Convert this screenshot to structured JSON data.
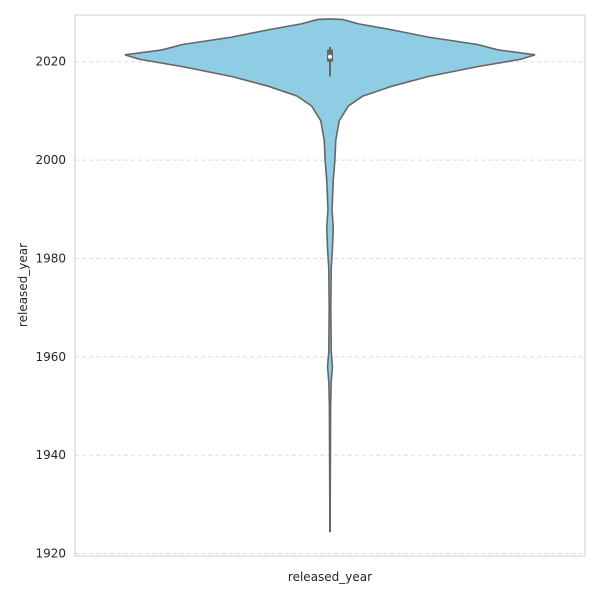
{
  "chart_data": {
    "type": "violin",
    "title": "",
    "xlabel": "released_year",
    "ylabel": "released_year",
    "ylim": [
      1919.5,
      2029.5
    ],
    "yticks": [
      1920,
      1940,
      1960,
      1980,
      2000,
      2020
    ],
    "ytick_labels": [
      "1920",
      "1940",
      "1960",
      "1980",
      "2000",
      "2020"
    ],
    "grid": "horizontal-dashed",
    "colors": {
      "fill": "#8ecde3",
      "stroke": "#666666",
      "grid": "#dddddd",
      "frame": "#cccccc",
      "box": "#666666"
    },
    "summary": {
      "min": 1924.5,
      "q1": 2020,
      "median": 2021,
      "q3": 2022.5,
      "max": 2028.5,
      "whisker_low": 2017,
      "whisker_high": 2023
    },
    "density_profile": [
      {
        "year": 1924.5,
        "half_width": 0.001
      },
      {
        "year": 1930,
        "half_width": 0.001
      },
      {
        "year": 1940,
        "half_width": 0.002
      },
      {
        "year": 1950,
        "half_width": 0.003
      },
      {
        "year": 1955,
        "half_width": 0.006
      },
      {
        "year": 1958,
        "half_width": 0.012
      },
      {
        "year": 1961,
        "half_width": 0.006
      },
      {
        "year": 1970,
        "half_width": 0.004
      },
      {
        "year": 1978,
        "half_width": 0.006
      },
      {
        "year": 1982,
        "half_width": 0.012
      },
      {
        "year": 1986,
        "half_width": 0.016
      },
      {
        "year": 1990,
        "half_width": 0.01
      },
      {
        "year": 1996,
        "half_width": 0.016
      },
      {
        "year": 2000,
        "half_width": 0.024
      },
      {
        "year": 2004,
        "half_width": 0.028
      },
      {
        "year": 2008,
        "half_width": 0.045
      },
      {
        "year": 2011,
        "half_width": 0.09
      },
      {
        "year": 2013,
        "half_width": 0.16
      },
      {
        "year": 2015,
        "half_width": 0.3
      },
      {
        "year": 2017,
        "half_width": 0.48
      },
      {
        "year": 2019,
        "half_width": 0.72
      },
      {
        "year": 2020.5,
        "half_width": 0.93
      },
      {
        "year": 2021.4,
        "half_width": 1.0
      },
      {
        "year": 2022.4,
        "half_width": 0.82
      },
      {
        "year": 2023.5,
        "half_width": 0.72
      },
      {
        "year": 2025,
        "half_width": 0.48
      },
      {
        "year": 2026.5,
        "half_width": 0.3
      },
      {
        "year": 2027.7,
        "half_width": 0.14
      },
      {
        "year": 2028.6,
        "half_width": 0.06
      },
      {
        "year": 2028.7,
        "half_width": 0.0
      }
    ]
  }
}
